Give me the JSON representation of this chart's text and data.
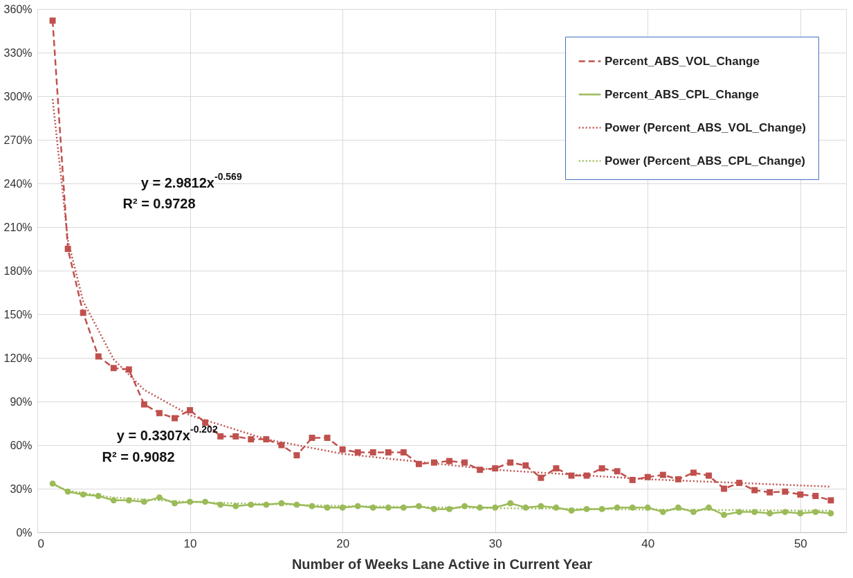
{
  "chart_data": {
    "type": "line",
    "xlabel": "Number of Weeks Lane Active in Current Year",
    "x": [
      1,
      2,
      3,
      4,
      5,
      6,
      7,
      8,
      9,
      10,
      11,
      12,
      13,
      14,
      15,
      16,
      17,
      18,
      19,
      20,
      21,
      22,
      23,
      24,
      25,
      26,
      27,
      28,
      29,
      30,
      31,
      32,
      33,
      34,
      35,
      36,
      37,
      38,
      39,
      40,
      41,
      42,
      43,
      44,
      45,
      46,
      47,
      48,
      49,
      50,
      51,
      52
    ],
    "series": [
      {
        "name": "Percent_ABS_VOL_Change",
        "color": "#c0504d",
        "type": "line",
        "line_style": "dashed",
        "marker": "square",
        "values": [
          352,
          195,
          151,
          121,
          113,
          112,
          88,
          82,
          78.5,
          84,
          75.5,
          66,
          66,
          64,
          64,
          60,
          53,
          65,
          65,
          57,
          55,
          55,
          55,
          55,
          47,
          48,
          49,
          48,
          43,
          44,
          48,
          46,
          37.5,
          44,
          39,
          39,
          44,
          42,
          36,
          38,
          39.5,
          36.5,
          41,
          39,
          30,
          34,
          29,
          27.5,
          28,
          26,
          25,
          22
        ]
      },
      {
        "name": "Percent_ABS_CPL_Change",
        "color": "#9bbb59",
        "type": "line",
        "line_style": "solid",
        "marker": "circle",
        "values": [
          33.5,
          28,
          26,
          25,
          22,
          22,
          21,
          24,
          20,
          21,
          21,
          19,
          18,
          19,
          19,
          20,
          19,
          18,
          17,
          17,
          18,
          17,
          17,
          17,
          18,
          16,
          16,
          18,
          17,
          17,
          20,
          17,
          18,
          17,
          15,
          16,
          16,
          17,
          17,
          17,
          14,
          17,
          14,
          17,
          12,
          14,
          14,
          13,
          14,
          13,
          14,
          13
        ]
      },
      {
        "name": "Power (Percent_ABS_VOL_Change)",
        "color": "#c0504d",
        "type": "line",
        "line_style": "dotted",
        "marker": "none",
        "x": [
          1,
          2,
          3,
          5,
          7,
          10,
          15,
          20,
          30,
          40,
          52
        ],
        "values": [
          298,
          201,
          159,
          119,
          98,
          80.5,
          64,
          54,
          43,
          36.5,
          31.4
        ]
      },
      {
        "name": "Power (Percent_ABS_CPL_Change)",
        "color": "#9bbb59",
        "type": "line",
        "line_style": "dotted",
        "marker": "none",
        "x": [
          1,
          2,
          5,
          10,
          20,
          30,
          40,
          52
        ],
        "values": [
          33,
          28.7,
          23.9,
          20.8,
          18.1,
          16.6,
          15.7,
          14.9
        ]
      }
    ],
    "xlim": [
      0,
      53
    ],
    "xticks": [
      0,
      10,
      20,
      30,
      40,
      50
    ],
    "ylim": [
      0,
      360
    ],
    "yticks": [
      {
        "value": 0,
        "label": "0%"
      },
      {
        "value": 30,
        "label": "30%"
      },
      {
        "value": 60,
        "label": "60%"
      },
      {
        "value": 90,
        "label": "90%"
      },
      {
        "value": 120,
        "label": "120%"
      },
      {
        "value": 150,
        "label": "150%"
      },
      {
        "value": 180,
        "label": "180%"
      },
      {
        "value": 210,
        "label": "210%"
      },
      {
        "value": 240,
        "label": "240%"
      },
      {
        "value": 270,
        "label": "270%"
      },
      {
        "value": 300,
        "label": "300%"
      },
      {
        "value": 330,
        "label": "330%"
      },
      {
        "value": 360,
        "label": "360%"
      }
    ],
    "grid": true,
    "legend": "top right",
    "annotations": [
      "y = 2.9812x$^{-0.569}$",
      "R² = 0.9728",
      "y = 0.3307x$^{-0.202}$",
      "R² = 0.9082"
    ]
  }
}
